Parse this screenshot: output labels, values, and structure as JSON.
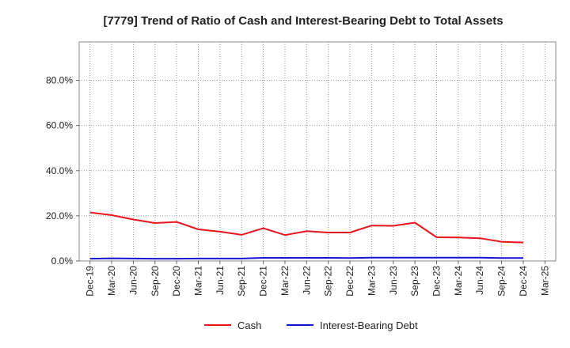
{
  "chart_data": {
    "type": "line",
    "title": "[7779]  Trend of Ratio of Cash and Interest-Bearing Debt to Total Assets",
    "xlabel": "",
    "ylabel": "",
    "categories": [
      "Dec-19",
      "Mar-20",
      "Jun-20",
      "Sep-20",
      "Dec-20",
      "Mar-21",
      "Jun-21",
      "Sep-21",
      "Dec-21",
      "Mar-22",
      "Jun-22",
      "Sep-22",
      "Dec-22",
      "Mar-23",
      "Jun-23",
      "Sep-23",
      "Dec-23",
      "Mar-24",
      "Jun-24",
      "Sep-24",
      "Dec-24",
      "Mar-25"
    ],
    "ylim": [
      0,
      97
    ],
    "yticks": [
      0,
      20,
      40,
      60,
      80
    ],
    "ytick_labels": [
      "0.0%",
      "20.0%",
      "40.0%",
      "60.0%",
      "80.0%"
    ],
    "grid": true,
    "legend_position": "bottom",
    "series": [
      {
        "name": "Cash",
        "color": "#e8141c",
        "values": [
          21.5,
          20.3,
          18.4,
          16.8,
          17.3,
          14.0,
          13.0,
          11.6,
          14.5,
          11.5,
          13.2,
          12.6,
          12.6,
          15.7,
          15.6,
          17.0,
          10.5,
          10.4,
          10.1,
          8.5,
          8.2,
          null
        ]
      },
      {
        "name": "Interest-Bearing Debt",
        "color": "#1414d2",
        "values": [
          1.0,
          1.2,
          1.1,
          1.0,
          1.0,
          1.1,
          1.1,
          1.1,
          1.4,
          1.4,
          1.4,
          1.4,
          1.3,
          1.5,
          1.5,
          1.5,
          1.5,
          1.5,
          1.5,
          1.3,
          1.3,
          null
        ]
      }
    ]
  }
}
